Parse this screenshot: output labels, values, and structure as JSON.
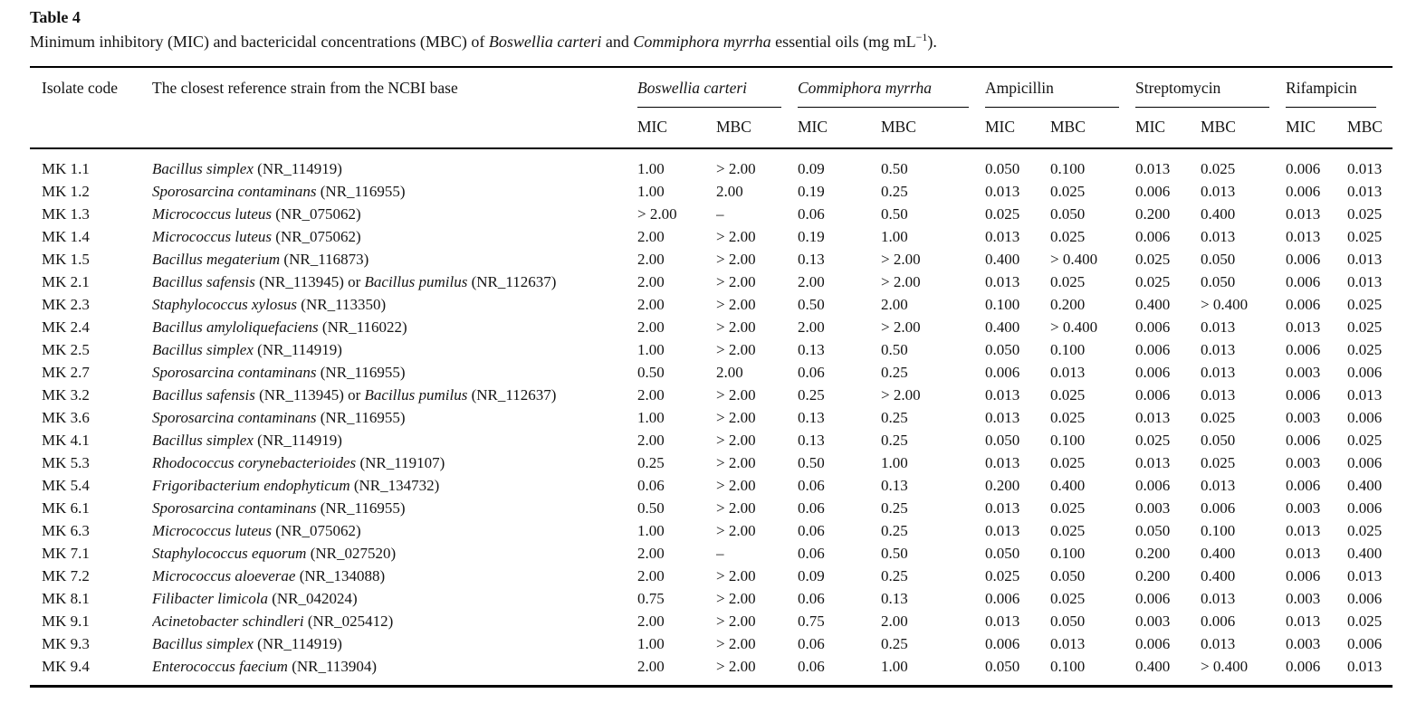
{
  "title": "Table 4",
  "caption": {
    "part1": "Minimum inhibitory (MIC) and bactericidal concentrations (MBC) of ",
    "species1": "Boswellia carteri",
    "part2": " and ",
    "species2": "Commiphora myrrha",
    "part3": " essential oils (mg mL",
    "sup": "−1",
    "part4": ")."
  },
  "table": {
    "columns": {
      "isolate_code": "Isolate code",
      "strain": "The closest reference strain from the NCBI base"
    },
    "groups": [
      {
        "label": "Boswellia carteri",
        "italic": true,
        "sub": [
          "MIC",
          "MBC"
        ]
      },
      {
        "label": "Commiphora myrrha",
        "italic": true,
        "sub": [
          "MIC",
          "MBC"
        ]
      },
      {
        "label": "Ampicillin",
        "italic": false,
        "sub": [
          "MIC",
          "MBC"
        ]
      },
      {
        "label": "Streptomycin",
        "italic": false,
        "sub": [
          "MIC",
          "MBC"
        ]
      },
      {
        "label": "Rifampicin",
        "italic": false,
        "sub": [
          "MIC",
          "MBC"
        ]
      }
    ],
    "rows": [
      {
        "code": "MK 1.1",
        "strain": [
          {
            "text": "Bacillus simplex",
            "italic": true
          },
          {
            "text": " (NR_114919)",
            "italic": false
          }
        ],
        "values": [
          "1.00",
          "> 2.00",
          "0.09",
          "0.50",
          "0.050",
          "0.100",
          "0.013",
          "0.025",
          "0.006",
          "0.013"
        ]
      },
      {
        "code": "MK 1.2",
        "strain": [
          {
            "text": "Sporosarcina contaminans",
            "italic": true
          },
          {
            "text": " (NR_116955)",
            "italic": false
          }
        ],
        "values": [
          "1.00",
          "2.00",
          "0.19",
          "0.25",
          "0.013",
          "0.025",
          "0.006",
          "0.013",
          "0.006",
          "0.013"
        ]
      },
      {
        "code": "MK 1.3",
        "strain": [
          {
            "text": "Micrococcus luteus",
            "italic": true
          },
          {
            "text": " (NR_075062)",
            "italic": false
          }
        ],
        "values": [
          "> 2.00",
          "–",
          "0.06",
          "0.50",
          "0.025",
          "0.050",
          "0.200",
          "0.400",
          "0.013",
          "0.025"
        ]
      },
      {
        "code": "MK 1.4",
        "strain": [
          {
            "text": "Micrococcus luteus",
            "italic": true
          },
          {
            "text": " (NR_075062)",
            "italic": false
          }
        ],
        "values": [
          "2.00",
          "> 2.00",
          "0.19",
          "1.00",
          "0.013",
          "0.025",
          "0.006",
          "0.013",
          "0.013",
          "0.025"
        ]
      },
      {
        "code": "MK 1.5",
        "strain": [
          {
            "text": "Bacillus megaterium",
            "italic": true
          },
          {
            "text": " (NR_116873)",
            "italic": false
          }
        ],
        "values": [
          "2.00",
          "> 2.00",
          "0.13",
          "> 2.00",
          "0.400",
          "> 0.400",
          "0.025",
          "0.050",
          "0.006",
          "0.013"
        ]
      },
      {
        "code": "MK 2.1",
        "strain": [
          {
            "text": "Bacillus safensis",
            "italic": true
          },
          {
            "text": " (NR_113945) or ",
            "italic": false
          },
          {
            "text": "Bacillus pumilus",
            "italic": true
          },
          {
            "text": " (NR_112637)",
            "italic": false
          }
        ],
        "values": [
          "2.00",
          "> 2.00",
          "2.00",
          "> 2.00",
          "0.013",
          "0.025",
          "0.025",
          "0.050",
          "0.006",
          "0.013"
        ]
      },
      {
        "code": "MK 2.3",
        "strain": [
          {
            "text": "Staphylococcus xylosus",
            "italic": true
          },
          {
            "text": " (NR_113350)",
            "italic": false
          }
        ],
        "values": [
          "2.00",
          "> 2.00",
          "0.50",
          "2.00",
          "0.100",
          "0.200",
          "0.400",
          "> 0.400",
          "0.006",
          "0.025"
        ]
      },
      {
        "code": "MK 2.4",
        "strain": [
          {
            "text": "Bacillus amyloliquefaciens",
            "italic": true
          },
          {
            "text": " (NR_116022)",
            "italic": false
          }
        ],
        "values": [
          "2.00",
          "> 2.00",
          "2.00",
          "> 2.00",
          "0.400",
          "> 0.400",
          "0.006",
          "0.013",
          "0.013",
          "0.025"
        ]
      },
      {
        "code": "MK 2.5",
        "strain": [
          {
            "text": "Bacillus simplex",
            "italic": true
          },
          {
            "text": " (NR_114919)",
            "italic": false
          }
        ],
        "values": [
          "1.00",
          "> 2.00",
          "0.13",
          "0.50",
          "0.050",
          "0.100",
          "0.006",
          "0.013",
          "0.006",
          "0.025"
        ]
      },
      {
        "code": "MK 2.7",
        "strain": [
          {
            "text": "Sporosarcina contaminans",
            "italic": true
          },
          {
            "text": " (NR_116955)",
            "italic": false
          }
        ],
        "values": [
          "0.50",
          "2.00",
          "0.06",
          "0.25",
          "0.006",
          "0.013",
          "0.006",
          "0.013",
          "0.003",
          "0.006"
        ]
      },
      {
        "code": "MK 3.2",
        "strain": [
          {
            "text": "Bacillus safensis",
            "italic": true
          },
          {
            "text": " (NR_113945) or ",
            "italic": false
          },
          {
            "text": "Bacillus pumilus",
            "italic": true
          },
          {
            "text": " (NR_112637)",
            "italic": false
          }
        ],
        "values": [
          "2.00",
          "> 2.00",
          "0.25",
          "> 2.00",
          "0.013",
          "0.025",
          "0.006",
          "0.013",
          "0.006",
          "0.013"
        ]
      },
      {
        "code": "MK 3.6",
        "strain": [
          {
            "text": "Sporosarcina contaminans",
            "italic": true
          },
          {
            "text": " (NR_116955)",
            "italic": false
          }
        ],
        "values": [
          "1.00",
          "> 2.00",
          "0.13",
          "0.25",
          "0.013",
          "0.025",
          "0.013",
          "0.025",
          "0.003",
          "0.006"
        ]
      },
      {
        "code": "MK 4.1",
        "strain": [
          {
            "text": "Bacillus simplex",
            "italic": true
          },
          {
            "text": " (NR_114919)",
            "italic": false
          }
        ],
        "values": [
          "2.00",
          "> 2.00",
          "0.13",
          "0.25",
          "0.050",
          "0.100",
          "0.025",
          "0.050",
          "0.006",
          "0.025"
        ]
      },
      {
        "code": "MK 5.3",
        "strain": [
          {
            "text": "Rhodococcus corynebacterioides",
            "italic": true
          },
          {
            "text": " (NR_119107)",
            "italic": false
          }
        ],
        "values": [
          "0.25",
          "> 2.00",
          "0.50",
          "1.00",
          "0.013",
          "0.025",
          "0.013",
          "0.025",
          "0.003",
          "0.006"
        ]
      },
      {
        "code": "MK 5.4",
        "strain": [
          {
            "text": "Frigoribacterium endophyticum",
            "italic": true
          },
          {
            "text": " (NR_134732)",
            "italic": false
          }
        ],
        "values": [
          "0.06",
          "> 2.00",
          "0.06",
          "0.13",
          "0.200",
          "0.400",
          "0.006",
          "0.013",
          "0.006",
          "0.400"
        ]
      },
      {
        "code": "MK 6.1",
        "strain": [
          {
            "text": "Sporosarcina contaminans",
            "italic": true
          },
          {
            "text": " (NR_116955)",
            "italic": false
          }
        ],
        "values": [
          "0.50",
          "> 2.00",
          "0.06",
          "0.25",
          "0.013",
          "0.025",
          "0.003",
          "0.006",
          "0.003",
          "0.006"
        ]
      },
      {
        "code": "MK 6.3",
        "strain": [
          {
            "text": "Micrococcus luteus",
            "italic": true
          },
          {
            "text": " (NR_075062)",
            "italic": false
          }
        ],
        "values": [
          "1.00",
          "> 2.00",
          "0.06",
          "0.25",
          "0.013",
          "0.025",
          "0.050",
          "0.100",
          "0.013",
          "0.025"
        ]
      },
      {
        "code": "MK 7.1",
        "strain": [
          {
            "text": "Staphylococcus equorum",
            "italic": true
          },
          {
            "text": " (NR_027520)",
            "italic": false
          }
        ],
        "values": [
          "2.00",
          "–",
          "0.06",
          "0.50",
          "0.050",
          "0.100",
          "0.200",
          "0.400",
          "0.013",
          "0.400"
        ]
      },
      {
        "code": "MK 7.2",
        "strain": [
          {
            "text": "Micrococcus aloeverae",
            "italic": true
          },
          {
            "text": " (NR_134088)",
            "italic": false
          }
        ],
        "values": [
          "2.00",
          "> 2.00",
          "0.09",
          "0.25",
          "0.025",
          "0.050",
          "0.200",
          "0.400",
          "0.006",
          "0.013"
        ]
      },
      {
        "code": "MK 8.1",
        "strain": [
          {
            "text": "Filibacter limicola",
            "italic": true
          },
          {
            "text": " (NR_042024)",
            "italic": false
          }
        ],
        "values": [
          "0.75",
          "> 2.00",
          "0.06",
          "0.13",
          "0.006",
          "0.025",
          "0.006",
          "0.013",
          "0.003",
          "0.006"
        ]
      },
      {
        "code": "MK 9.1",
        "strain": [
          {
            "text": "Acinetobacter schindleri",
            "italic": true
          },
          {
            "text": " (NR_025412)",
            "italic": false
          }
        ],
        "values": [
          "2.00",
          "> 2.00",
          "0.75",
          "2.00",
          "0.013",
          "0.050",
          "0.003",
          "0.006",
          "0.013",
          "0.025"
        ]
      },
      {
        "code": "MK 9.3",
        "strain": [
          {
            "text": "Bacillus simplex",
            "italic": true
          },
          {
            "text": " (NR_114919)",
            "italic": false
          }
        ],
        "values": [
          "1.00",
          "> 2.00",
          "0.06",
          "0.25",
          "0.006",
          "0.013",
          "0.006",
          "0.013",
          "0.003",
          "0.006"
        ]
      },
      {
        "code": "MK 9.4",
        "strain": [
          {
            "text": "Enterococcus faecium",
            "italic": true
          },
          {
            "text": " (NR_113904)",
            "italic": false
          }
        ],
        "values": [
          "2.00",
          "> 2.00",
          "0.06",
          "1.00",
          "0.050",
          "0.100",
          "0.400",
          "> 0.400",
          "0.006",
          "0.013"
        ]
      }
    ]
  }
}
